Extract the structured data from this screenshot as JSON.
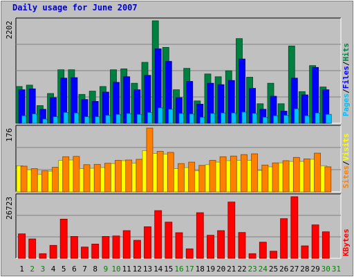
{
  "title": "Daily usage for June 2007",
  "colors": {
    "background": "#c0c0c0",
    "hits": "#008040",
    "files": "#0000ff",
    "pages": "#00c0ff",
    "visits": "#ffff00",
    "sites": "#ff8000",
    "kbytes": "#ff0000",
    "title": "#0000cc",
    "weekend_day": "#008000"
  },
  "chart_data": [
    {
      "type": "bar",
      "panel": "top",
      "ylim": [
        0,
        2202
      ],
      "y_tick_label": "2202",
      "categories": [
        "1",
        "2",
        "3",
        "4",
        "5",
        "6",
        "7",
        "8",
        "9",
        "10",
        "11",
        "12",
        "13",
        "14",
        "15",
        "16",
        "17",
        "18",
        "19",
        "20",
        "21",
        "22",
        "23",
        "24",
        "25",
        "26",
        "27",
        "28",
        "29",
        "30",
        "31"
      ],
      "weekend_days": [
        "2",
        "3",
        "9",
        "10",
        "16",
        "17",
        "23",
        "24",
        "30",
        "31"
      ],
      "grid": true,
      "series": [
        {
          "name": "Hits",
          "values": [
            790,
            820,
            380,
            640,
            1150,
            1150,
            620,
            690,
            790,
            1150,
            1170,
            860,
            1310,
            2202,
            1630,
            720,
            1180,
            480,
            1060,
            1000,
            1130,
            1820,
            990,
            420,
            860,
            420,
            1660,
            680,
            1240,
            780,
            0
          ]
        },
        {
          "name": "Files",
          "values": [
            720,
            740,
            300,
            550,
            970,
            980,
            510,
            470,
            670,
            880,
            1000,
            720,
            1030,
            1600,
            1330,
            550,
            900,
            410,
            860,
            830,
            920,
            1380,
            750,
            300,
            580,
            260,
            970,
            610,
            1200,
            720,
            0
          ]
        },
        {
          "name": "Pages",
          "values": [
            160,
            200,
            90,
            140,
            230,
            220,
            140,
            140,
            170,
            190,
            210,
            190,
            230,
            330,
            300,
            210,
            200,
            130,
            210,
            220,
            220,
            240,
            210,
            130,
            160,
            170,
            310,
            160,
            220,
            190,
            0
          ]
        }
      ]
    },
    {
      "type": "bar",
      "panel": "middle",
      "ylim": [
        0,
        176
      ],
      "y_tick_label": "176",
      "categories": [
        "1",
        "2",
        "3",
        "4",
        "5",
        "6",
        "7",
        "8",
        "9",
        "10",
        "11",
        "12",
        "13",
        "14",
        "15",
        "16",
        "17",
        "18",
        "19",
        "20",
        "21",
        "22",
        "23",
        "24",
        "25",
        "26",
        "27",
        "28",
        "29",
        "30",
        "31"
      ],
      "grid": true,
      "series": [
        {
          "name": "Visits",
          "values": [
            72,
            61,
            48,
            57,
            87,
            88,
            64,
            65,
            67,
            78,
            86,
            79,
            114,
            106,
            104,
            64,
            67,
            58,
            75,
            82,
            86,
            87,
            87,
            59,
            69,
            80,
            84,
            84,
            90,
            72,
            0
          ]
        },
        {
          "name": "Sites",
          "values": [
            71,
            64,
            58,
            68,
            97,
            98,
            75,
            76,
            79,
            87,
            88,
            90,
            176,
            112,
            109,
            78,
            82,
            73,
            87,
            97,
            99,
            103,
            105,
            74,
            80,
            86,
            95,
            91,
            107,
            69,
            0
          ]
        }
      ]
    },
    {
      "type": "bar",
      "panel": "bottom",
      "ylim": [
        0,
        26723
      ],
      "y_tick_label": "26723",
      "categories": [
        "1",
        "2",
        "3",
        "4",
        "5",
        "6",
        "7",
        "8",
        "9",
        "10",
        "11",
        "12",
        "13",
        "14",
        "15",
        "16",
        "17",
        "18",
        "19",
        "20",
        "21",
        "22",
        "23",
        "24",
        "25",
        "26",
        "27",
        "28",
        "29",
        "30",
        "31"
      ],
      "grid": true,
      "series": [
        {
          "name": "KBytes",
          "values": [
            10600,
            8400,
            2000,
            5600,
            17000,
            9500,
            4900,
            6200,
            9500,
            9700,
            12000,
            7800,
            13700,
            20700,
            15700,
            11100,
            4100,
            19800,
            10000,
            12000,
            24400,
            11200,
            2000,
            7000,
            3100,
            17200,
            26723,
            5400,
            14500,
            11500,
            0
          ]
        }
      ]
    }
  ],
  "right_labels": {
    "top": [
      "Pages",
      "/",
      "Files",
      "/",
      "Hits"
    ],
    "middle": [
      "Sites",
      "/",
      "Visits"
    ],
    "bottom": [
      "KBytes"
    ]
  }
}
